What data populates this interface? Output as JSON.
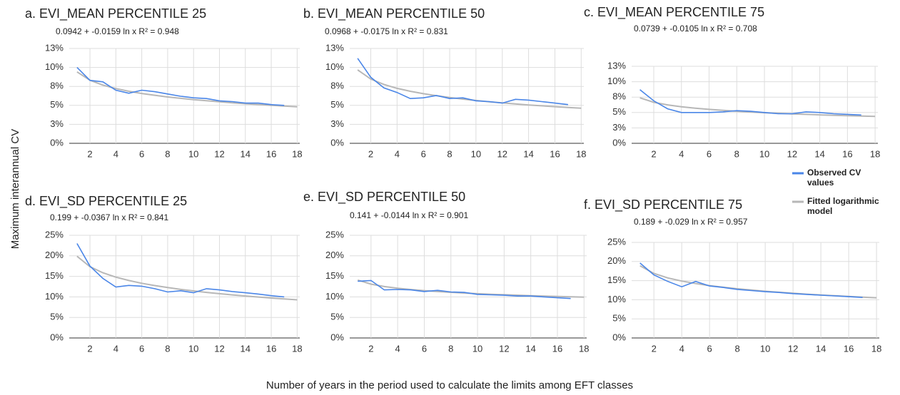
{
  "ylabel": "Maximum interannual CV",
  "xlabel": "Number of years in the period used to calculate the limits among EFT classes",
  "chart_data": [
    {
      "type": "line",
      "title": "a. EVI_MEAN PERCENTILE 25",
      "subtitle": "0.0942 + -0.0159 ln x R² = 0.948",
      "x": [
        1,
        2,
        3,
        4,
        5,
        6,
        7,
        8,
        9,
        10,
        11,
        12,
        13,
        14,
        15,
        16,
        17,
        18
      ],
      "series": [
        {
          "name": "Observed CV values",
          "color": "#4a86e8",
          "values": [
            10.0,
            8.3,
            8.1,
            7.0,
            6.6,
            7.0,
            6.8,
            6.5,
            6.2,
            6.0,
            5.9,
            5.6,
            5.5,
            5.3,
            5.3,
            5.1,
            5.0,
            null
          ]
        },
        {
          "name": "Fitted logarithmic model",
          "color": "#b7b7b7",
          "values": [
            9.42,
            8.32,
            7.67,
            7.22,
            6.86,
            6.57,
            6.33,
            6.11,
            5.93,
            5.76,
            5.61,
            5.47,
            5.34,
            5.22,
            5.11,
            5.01,
            4.92,
            4.82
          ]
        }
      ],
      "xlim": [
        0.4,
        18.2
      ],
      "xticks": [
        2,
        4,
        6,
        8,
        10,
        12,
        14,
        16,
        18
      ],
      "ylim": [
        0,
        12.5
      ],
      "yticks": [
        {
          "value": 0,
          "label": "0%"
        },
        {
          "value": 2.5,
          "label": "3%"
        },
        {
          "value": 5,
          "label": "5%"
        },
        {
          "value": 7.5,
          "label": "8%"
        },
        {
          "value": 10,
          "label": "10%"
        },
        {
          "value": 12.5,
          "label": "13%"
        }
      ],
      "grid": true
    },
    {
      "type": "line",
      "title": "b. EVI_MEAN PERCENTILE 50",
      "subtitle": "0.0968 + -0.0175 ln x R² = 0.831",
      "x": [
        1,
        2,
        3,
        4,
        5,
        6,
        7,
        8,
        9,
        10,
        11,
        12,
        13,
        14,
        15,
        16,
        17,
        18
      ],
      "series": [
        {
          "color": "#4a86e8",
          "values": [
            11.2,
            8.7,
            7.3,
            6.7,
            5.9,
            6.0,
            6.3,
            5.9,
            6.0,
            5.6,
            5.5,
            5.3,
            5.8,
            5.7,
            5.5,
            5.3,
            5.1,
            null
          ]
        },
        {
          "color": "#b7b7b7",
          "values": [
            9.68,
            8.47,
            7.76,
            7.25,
            6.86,
            6.54,
            6.27,
            6.04,
            5.83,
            5.65,
            5.48,
            5.33,
            5.19,
            5.06,
            4.94,
            4.83,
            4.72,
            4.62
          ]
        }
      ],
      "xlim": [
        0.4,
        18.2
      ],
      "xticks": [
        2,
        4,
        6,
        8,
        10,
        12,
        14,
        16,
        18
      ],
      "ylim": [
        0,
        12.5
      ],
      "yticks": [
        {
          "value": 0,
          "label": "0%"
        },
        {
          "value": 2.5,
          "label": "3%"
        },
        {
          "value": 5,
          "label": "5%"
        },
        {
          "value": 7.5,
          "label": "8%"
        },
        {
          "value": 10,
          "label": "10%"
        },
        {
          "value": 12.5,
          "label": "13%"
        }
      ],
      "grid": true
    },
    {
      "type": "line",
      "title": "c. EVI_MEAN PERCENTILE 75",
      "subtitle": "0.0739 + -0.0105 ln x R² = 0.708",
      "x": [
        1,
        2,
        3,
        4,
        5,
        6,
        7,
        8,
        9,
        10,
        11,
        12,
        13,
        14,
        15,
        16,
        17,
        18
      ],
      "series": [
        {
          "color": "#4a86e8",
          "values": [
            8.7,
            6.9,
            5.6,
            5.0,
            5.0,
            5.0,
            5.1,
            5.3,
            5.2,
            5.0,
            4.8,
            4.8,
            5.1,
            5.0,
            4.8,
            4.7,
            4.6,
            null
          ]
        },
        {
          "color": "#b7b7b7",
          "values": [
            7.39,
            6.66,
            6.24,
            5.93,
            5.7,
            5.51,
            5.35,
            5.21,
            5.08,
            4.97,
            4.87,
            4.78,
            4.7,
            4.62,
            4.55,
            4.48,
            4.42,
            4.36
          ]
        }
      ],
      "xlim": [
        0.4,
        18.2
      ],
      "xticks": [
        2,
        4,
        6,
        8,
        10,
        12,
        14,
        16,
        18
      ],
      "ylim": [
        0,
        12.5
      ],
      "yticks": [
        {
          "value": 0,
          "label": "0%"
        },
        {
          "value": 2.5,
          "label": "3%"
        },
        {
          "value": 5,
          "label": "5%"
        },
        {
          "value": 7.5,
          "label": "8%"
        },
        {
          "value": 10,
          "label": "10%"
        },
        {
          "value": 12.5,
          "label": "13%"
        }
      ],
      "grid": true
    },
    {
      "type": "line",
      "title": "d. EVI_SD PERCENTILE 25",
      "subtitle": "0.199 + -0.0367 ln x R² = 0.841",
      "x": [
        1,
        2,
        3,
        4,
        5,
        6,
        7,
        8,
        9,
        10,
        11,
        12,
        13,
        14,
        15,
        16,
        17,
        18
      ],
      "series": [
        {
          "color": "#4a86e8",
          "values": [
            23.0,
            17.5,
            14.5,
            12.4,
            12.8,
            12.6,
            12.0,
            11.2,
            11.5,
            11.0,
            12.0,
            11.7,
            11.3,
            11.0,
            10.7,
            10.3,
            10.0,
            null
          ]
        },
        {
          "color": "#b7b7b7",
          "values": [
            19.9,
            17.36,
            15.87,
            14.81,
            13.99,
            13.32,
            12.76,
            12.27,
            11.83,
            11.45,
            11.1,
            10.78,
            10.49,
            10.22,
            9.96,
            9.72,
            9.5,
            9.29
          ]
        }
      ],
      "xlim": [
        0.4,
        18.2
      ],
      "xticks": [
        2,
        4,
        6,
        8,
        10,
        12,
        14,
        16,
        18
      ],
      "ylim": [
        0,
        25
      ],
      "yticks": [
        {
          "value": 0,
          "label": "0%"
        },
        {
          "value": 5,
          "label": "5%"
        },
        {
          "value": 10,
          "label": "10%"
        },
        {
          "value": 15,
          "label": "15%"
        },
        {
          "value": 20,
          "label": "20%"
        },
        {
          "value": 25,
          "label": "25%"
        }
      ],
      "grid": true
    },
    {
      "type": "line",
      "title": "e. EVI_SD PERCENTILE 50",
      "subtitle": "0.141 + -0.0144 ln x R² = 0.901",
      "x": [
        1,
        2,
        3,
        4,
        5,
        6,
        7,
        8,
        9,
        10,
        11,
        12,
        13,
        14,
        15,
        16,
        17,
        18
      ],
      "series": [
        {
          "color": "#4a86e8",
          "values": [
            13.8,
            14.0,
            11.7,
            11.8,
            11.7,
            11.3,
            11.6,
            11.2,
            11.1,
            10.6,
            10.5,
            10.4,
            10.2,
            10.2,
            10.0,
            9.8,
            9.6,
            null
          ]
        },
        {
          "color": "#b7b7b7",
          "values": [
            14.1,
            13.1,
            12.52,
            12.1,
            11.78,
            11.52,
            11.3,
            11.11,
            10.94,
            10.78,
            10.65,
            10.52,
            10.41,
            10.3,
            10.2,
            10.11,
            10.02,
            9.94
          ]
        }
      ],
      "xlim": [
        0.4,
        18.2
      ],
      "xticks": [
        2,
        4,
        6,
        8,
        10,
        12,
        14,
        16,
        18
      ],
      "ylim": [
        0,
        25
      ],
      "yticks": [
        {
          "value": 0,
          "label": "0%"
        },
        {
          "value": 5,
          "label": "5%"
        },
        {
          "value": 10,
          "label": "10%"
        },
        {
          "value": 15,
          "label": "15%"
        },
        {
          "value": 20,
          "label": "20%"
        },
        {
          "value": 25,
          "label": "25%"
        }
      ],
      "grid": true
    },
    {
      "type": "line",
      "title": "f. EVI_SD PERCENTILE 75",
      "subtitle": "0.189 + -0.029 ln x R² = 0.957",
      "x": [
        1,
        2,
        3,
        4,
        5,
        6,
        7,
        8,
        9,
        10,
        11,
        12,
        13,
        14,
        15,
        16,
        17,
        18
      ],
      "series": [
        {
          "color": "#4a86e8",
          "values": [
            19.6,
            16.5,
            14.8,
            13.4,
            14.8,
            13.6,
            13.2,
            12.7,
            12.4,
            12.1,
            11.9,
            11.6,
            11.4,
            11.2,
            11.0,
            10.8,
            10.6,
            null
          ]
        },
        {
          "color": "#b7b7b7",
          "values": [
            18.9,
            16.89,
            15.71,
            14.88,
            14.23,
            13.7,
            13.26,
            12.87,
            12.53,
            12.22,
            11.95,
            11.69,
            11.46,
            11.25,
            11.05,
            10.86,
            10.68,
            10.52
          ]
        }
      ],
      "xlim": [
        0.4,
        18.2
      ],
      "xticks": [
        2,
        4,
        6,
        8,
        10,
        12,
        14,
        16,
        18
      ],
      "ylim": [
        0,
        25
      ],
      "yticks": [
        {
          "value": 0,
          "label": "0%"
        },
        {
          "value": 5,
          "label": "5%"
        },
        {
          "value": 10,
          "label": "10%"
        },
        {
          "value": 15,
          "label": "15%"
        },
        {
          "value": 20,
          "label": "20%"
        },
        {
          "value": 25,
          "label": "25%"
        }
      ],
      "grid": true
    }
  ]
}
